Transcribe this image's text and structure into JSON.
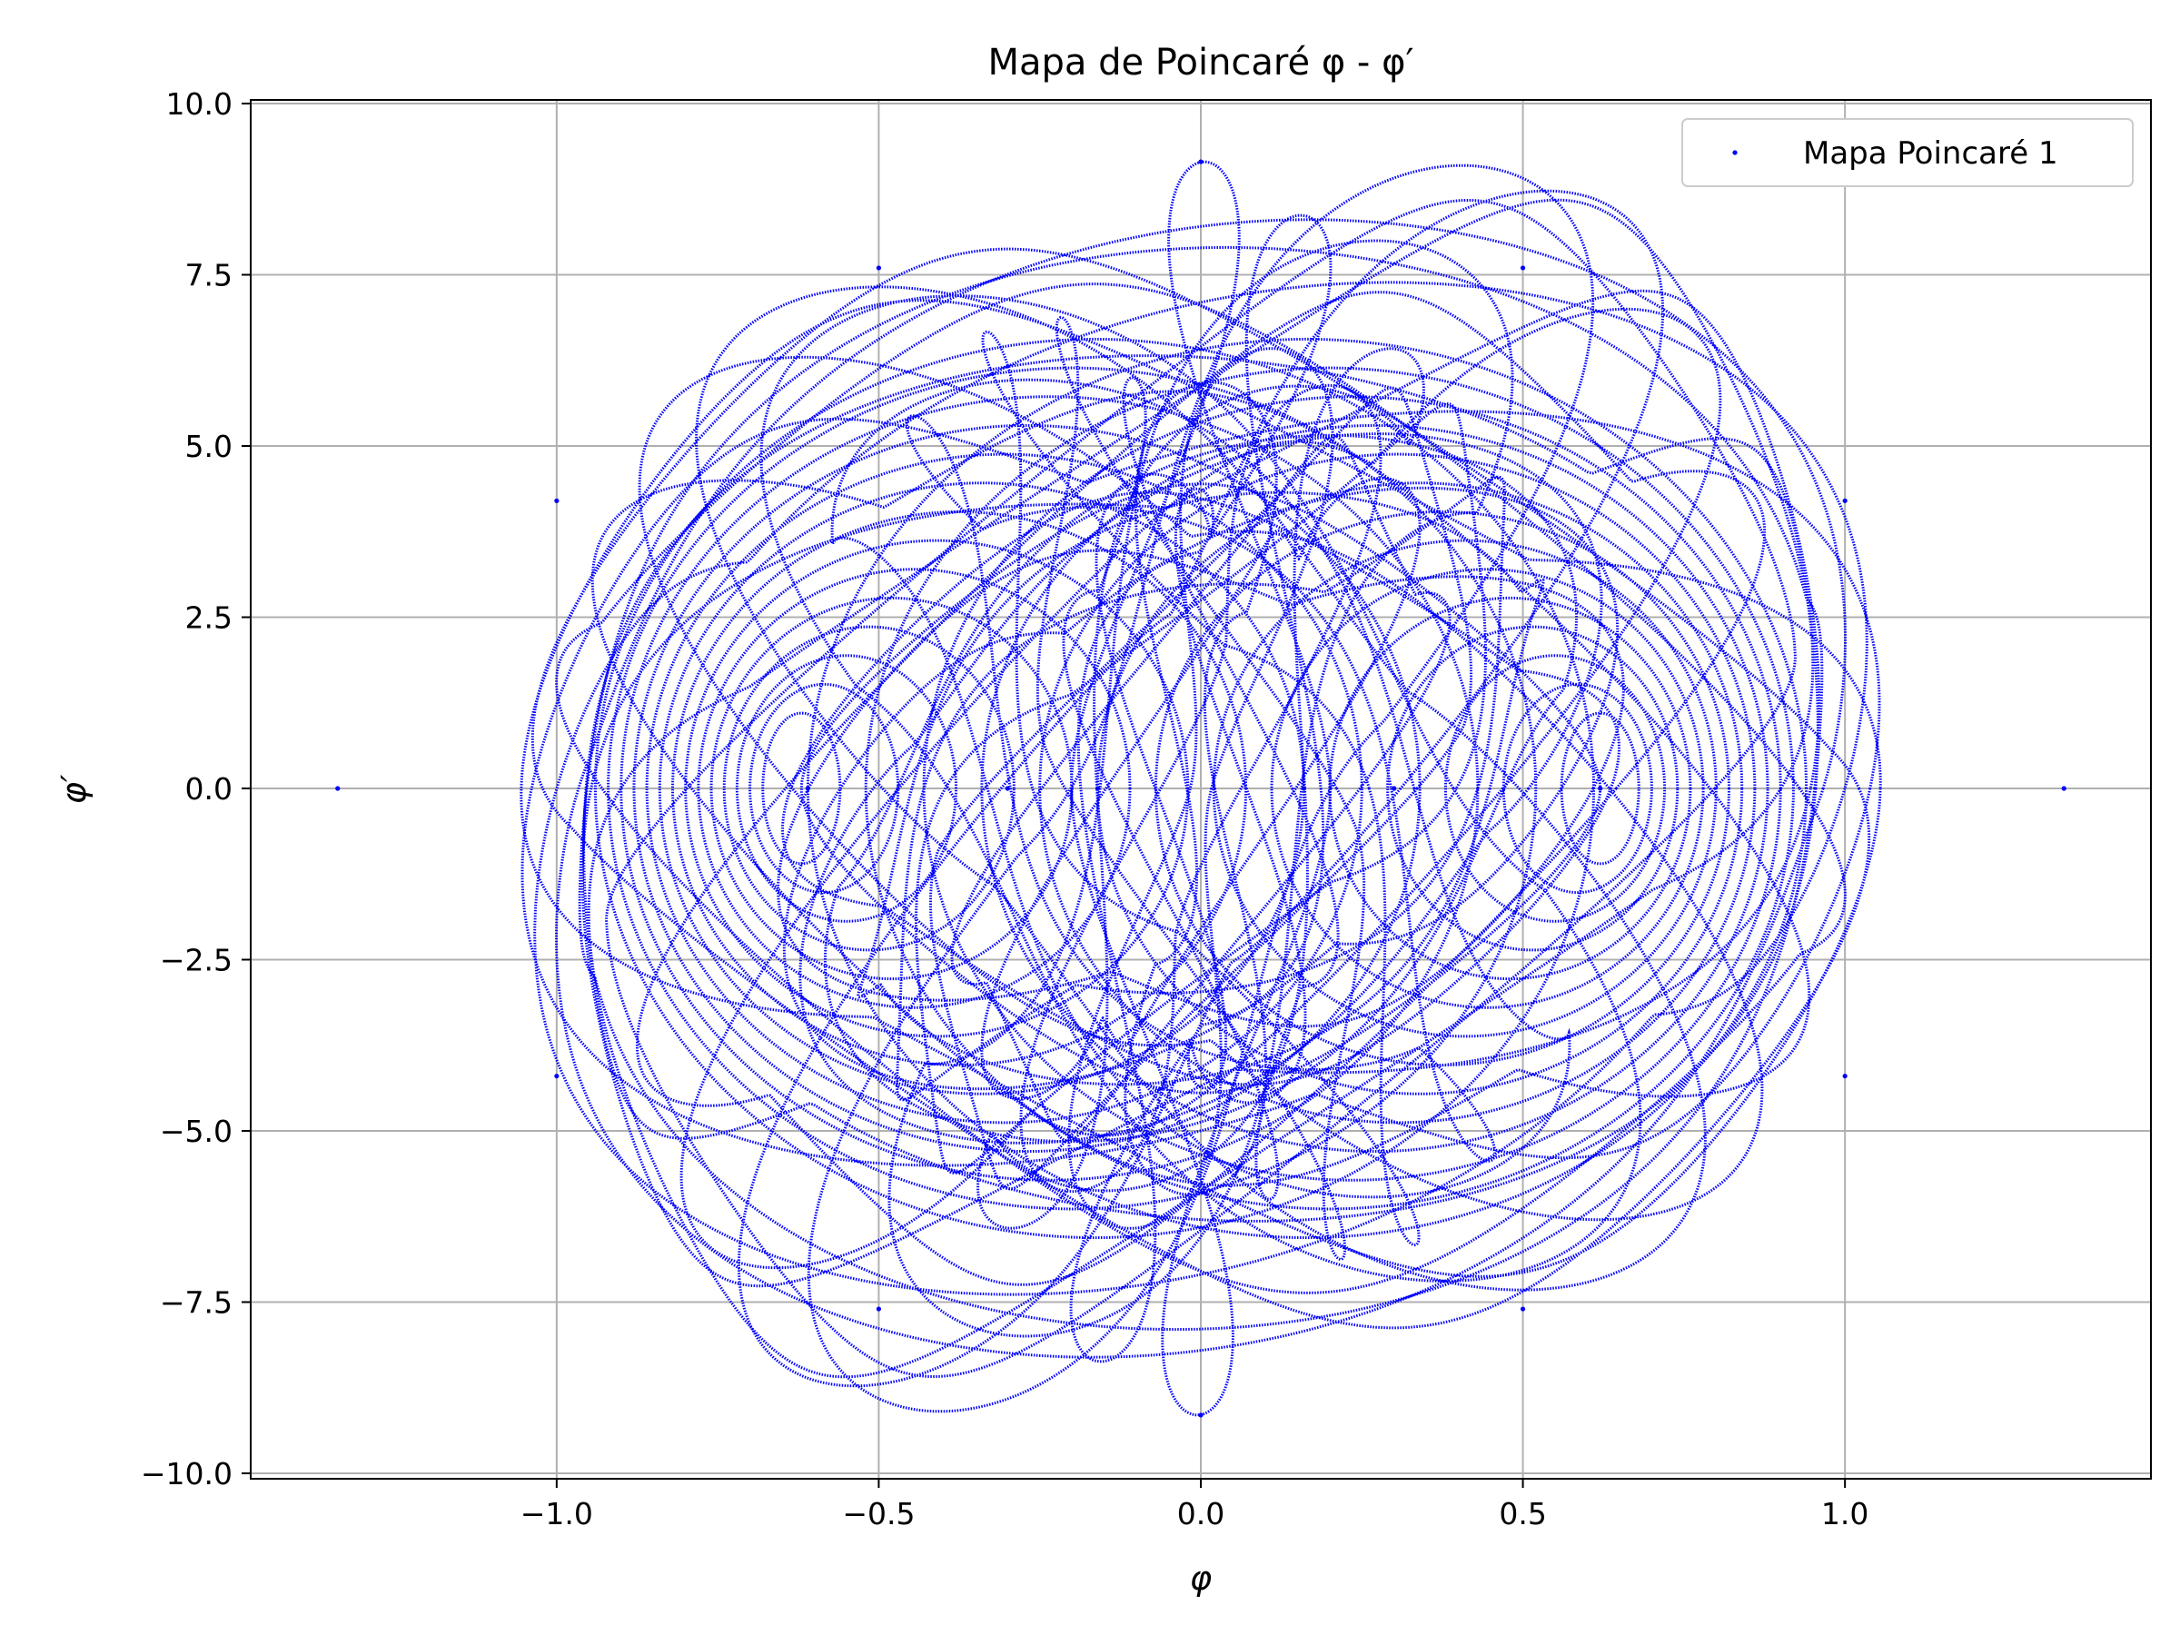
{
  "chart_data": {
    "type": "scatter",
    "title": "Mapa de Poincaré φ - φ′",
    "xlabel": "φ",
    "ylabel": "φ′",
    "xlim": [
      -1.475,
      1.475
    ],
    "ylim": [
      -10.0,
      10.0
    ],
    "x_ticks": [
      -1.0,
      -0.5,
      0.0,
      0.5,
      1.0
    ],
    "x_tick_labels": [
      "−1.0",
      "−0.5",
      "0.0",
      "0.5",
      "1.0"
    ],
    "y_ticks": [
      10.0,
      7.5,
      5.0,
      2.5,
      0.0,
      -2.5,
      -5.0,
      -7.5,
      -10.0
    ],
    "y_tick_labels": [
      "10.0",
      "7.5",
      "5.0",
      "2.5",
      "0.0",
      "−2.5",
      "−5.0",
      "−7.5",
      "−10.0"
    ],
    "grid": true,
    "legend_position": "top-right",
    "series": [
      {
        "name": "Mapa Poincaré 1",
        "color": "#0000ff",
        "marker": "point",
        "x_range": [
          -1.34,
          1.34
        ],
        "y_range": [
          -9.15,
          9.15
        ],
        "sampled_points": [
          [
            -1.34,
            0.0
          ],
          [
            -1.0,
            4.2
          ],
          [
            -0.5,
            7.6
          ],
          [
            0.0,
            9.15
          ],
          [
            0.5,
            7.6
          ],
          [
            1.0,
            4.2
          ],
          [
            1.34,
            0.0
          ],
          [
            1.0,
            -4.2
          ],
          [
            0.5,
            -7.6
          ],
          [
            0.0,
            -9.15
          ],
          [
            -0.5,
            -7.6
          ],
          [
            -1.0,
            -4.2
          ],
          [
            -0.61,
            0.0
          ],
          [
            0.62,
            0.0
          ],
          [
            -0.3,
            0.0
          ],
          [
            0.3,
            0.0
          ],
          [
            -0.16,
            0.0
          ],
          [
            0.16,
            0.0
          ]
        ]
      }
    ]
  }
}
